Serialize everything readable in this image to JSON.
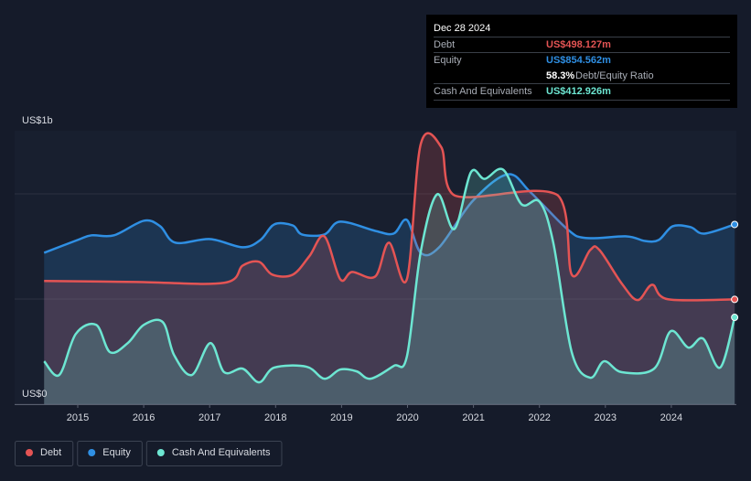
{
  "chart_data": {
    "type": "area",
    "tooltip": {
      "date": "Dec 28 2024",
      "rows": [
        {
          "label": "Debt",
          "value": "US$498.127m"
        },
        {
          "label": "Equity",
          "value": "US$854.562m"
        },
        {
          "label": "Debt/Equity Ratio",
          "value": "58.3%"
        },
        {
          "label": "Cash And Equivalents",
          "value": "US$412.926m"
        }
      ]
    },
    "xlim": [
      2014.49,
      2025.0
    ],
    "xticks": [
      2015,
      2016,
      2017,
      2018,
      2019,
      2020,
      2021,
      2022,
      2023,
      2024
    ],
    "ylim": [
      0,
      1300
    ],
    "yticks": [
      {
        "value": 0,
        "label": "US$0"
      },
      {
        "value": 1000,
        "label": "US$1b"
      }
    ],
    "minor_yticks": [
      500
    ],
    "grid": true,
    "series": [
      {
        "name": "Equity",
        "color": "#2f8fe3",
        "x": [
          2014.49,
          2015.0,
          2015.21,
          2015.55,
          2016.0,
          2016.25,
          2016.48,
          2017.01,
          2017.5,
          2017.77,
          2017.98,
          2018.26,
          2018.4,
          2018.74,
          2018.98,
          2019.51,
          2019.79,
          2019.99,
          2020.2,
          2020.48,
          2020.99,
          2021.52,
          2021.87,
          2022.42,
          2022.7,
          2023.32,
          2023.6,
          2023.81,
          2024.02,
          2024.29,
          2024.5,
          2024.96
        ],
        "values": [
          720,
          781,
          803,
          803,
          872,
          846,
          768,
          785,
          746,
          781,
          855,
          850,
          807,
          807,
          868,
          824,
          811,
          876,
          720,
          746,
          967,
          1093,
          1006,
          833,
          790,
          798,
          776,
          781,
          846,
          842,
          811,
          854.562
        ]
      },
      {
        "name": "Debt",
        "color": "#e45454",
        "x": [
          2014.49,
          2015.9,
          2017.22,
          2017.5,
          2017.75,
          2017.95,
          2018.26,
          2018.51,
          2018.74,
          2018.98,
          2019.16,
          2019.51,
          2019.72,
          2019.99,
          2020.2,
          2020.51,
          2020.71,
          2022.28,
          2022.49,
          2022.77,
          2022.91,
          2023.25,
          2023.49,
          2023.71,
          2023.95,
          2024.96
        ],
        "values": [
          586,
          581,
          577,
          659,
          677,
          616,
          616,
          703,
          798,
          594,
          629,
          607,
          768,
          594,
          1236,
          1223,
          993,
          993,
          616,
          733,
          733,
          573,
          495,
          568,
          499,
          498.127
        ]
      },
      {
        "name": "Cash And Equivalents",
        "color": "#6de6d2",
        "x": [
          2014.49,
          2014.72,
          2014.97,
          2015.28,
          2015.49,
          2015.76,
          2016.0,
          2016.29,
          2016.46,
          2016.73,
          2017.01,
          2017.22,
          2017.5,
          2017.75,
          2017.98,
          2018.47,
          2018.74,
          2018.98,
          2019.23,
          2019.44,
          2019.79,
          2019.99,
          2020.2,
          2020.45,
          2020.71,
          2020.96,
          2021.17,
          2021.45,
          2021.73,
          2022.0,
          2022.21,
          2022.49,
          2022.77,
          2022.98,
          2023.25,
          2023.74,
          2023.99,
          2024.26,
          2024.48,
          2024.74,
          2024.96
        ],
        "values": [
          204,
          139,
          334,
          377,
          247,
          291,
          377,
          390,
          234,
          139,
          291,
          152,
          169,
          104,
          174,
          178,
          121,
          165,
          156,
          121,
          182,
          226,
          724,
          998,
          833,
          1102,
          1071,
          1115,
          950,
          963,
          768,
          247,
          126,
          204,
          152,
          169,
          347,
          269,
          312,
          174,
          412.926
        ]
      }
    ]
  }
}
